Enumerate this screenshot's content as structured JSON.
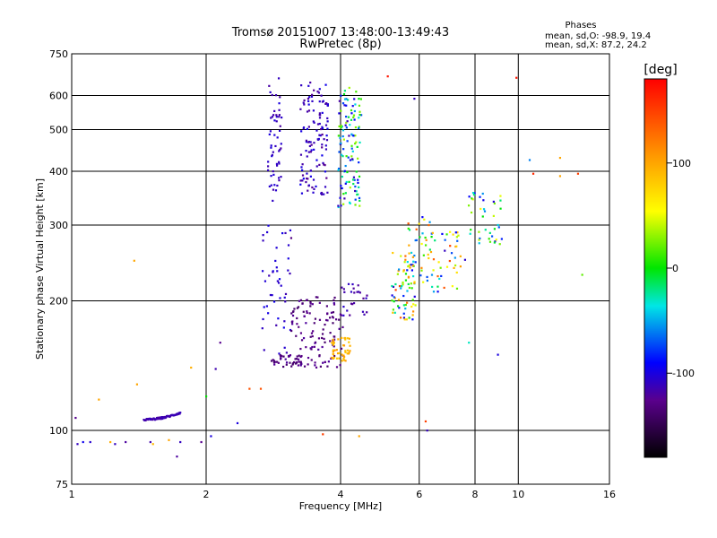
{
  "chart_data": {
    "type": "scatter",
    "title": "Tromsø 20151007 13:48:00-13:49:43",
    "subtitle": "RwPretec (8p)",
    "xlabel": "Frequency [MHz]",
    "ylabel": "Stationary phase Virtual Height [km]",
    "x_scale": "log",
    "y_scale": "log",
    "xlim": [
      1,
      16
    ],
    "ylim": [
      75,
      750
    ],
    "x_ticks": [
      1,
      2,
      4,
      6,
      8,
      10,
      16
    ],
    "y_ticks": [
      75,
      100,
      200,
      300,
      400,
      500,
      600,
      750
    ],
    "grid": true,
    "colorbar": {
      "label": "[deg]",
      "range": [
        -180,
        180
      ],
      "ticks": [
        100,
        0,
        -100
      ]
    },
    "phases_box": {
      "heading": "Phases",
      "line_o": "mean, sd,O: -98.9, 19.4",
      "line_x": "mean, sd,X: 87.2, 24.2"
    },
    "clusters": [
      {
        "x": [
          2.75,
          2.95
        ],
        "y": [
          340,
          660
        ],
        "phase": [
          -120,
          -100
        ],
        "n": 55
      },
      {
        "x": [
          3.25,
          3.75
        ],
        "y": [
          350,
          650
        ],
        "phase": [
          -125,
          -95
        ],
        "n": 120
      },
      {
        "x": [
          3.95,
          4.45
        ],
        "y": [
          330,
          630
        ],
        "phase": [
          -120,
          40
        ],
        "n": 120
      },
      {
        "x": [
          2.65,
          3.1
        ],
        "y": [
          150,
          300
        ],
        "phase": [
          -115,
          -95
        ],
        "n": 45
      },
      {
        "x": [
          2.8,
          3.3
        ],
        "y": [
          140,
          150
        ],
        "phase": [
          -140,
          -120
        ],
        "n": 40
      },
      {
        "x": [
          3.1,
          4.05
        ],
        "y": [
          140,
          205
        ],
        "phase": [
          -140,
          -120
        ],
        "n": 120
      },
      {
        "x": [
          3.8,
          4.2
        ],
        "y": [
          145,
          165
        ],
        "phase": [
          80,
          110
        ],
        "n": 45
      },
      {
        "x": [
          4.0,
          4.6
        ],
        "y": [
          185,
          220
        ],
        "phase": [
          -125,
          -105
        ],
        "n": 25
      },
      {
        "x": [
          5.2,
          5.9
        ],
        "y": [
          180,
          260
        ],
        "phase": [
          -110,
          150
        ],
        "n": 70
      },
      {
        "x": [
          5.6,
          6.5
        ],
        "y": [
          220,
          320
        ],
        "phase": [
          -100,
          140
        ],
        "n": 40
      },
      {
        "x": [
          6.4,
          7.6
        ],
        "y": [
          210,
          290
        ],
        "phase": [
          -110,
          150
        ],
        "n": 40
      },
      {
        "x": [
          7.7,
          9.2
        ],
        "y": [
          270,
          360
        ],
        "phase": [
          -110,
          60
        ],
        "n": 40
      }
    ],
    "trace": {
      "x": [
        1.45,
        1.75
      ],
      "y": [
        106,
        110
      ],
      "phase": [
        -120,
        -110
      ],
      "n": 60
    },
    "scatter_points": [
      {
        "x": 1.02,
        "y": 107,
        "phase": -125
      },
      {
        "x": 1.03,
        "y": 93,
        "phase": -110
      },
      {
        "x": 1.06,
        "y": 94,
        "phase": -95
      },
      {
        "x": 1.1,
        "y": 94,
        "phase": -105
      },
      {
        "x": 1.15,
        "y": 118,
        "phase": 100
      },
      {
        "x": 1.22,
        "y": 94,
        "phase": 95
      },
      {
        "x": 1.25,
        "y": 93,
        "phase": -110
      },
      {
        "x": 1.32,
        "y": 94,
        "phase": -120
      },
      {
        "x": 1.38,
        "y": 248,
        "phase": 100
      },
      {
        "x": 1.4,
        "y": 128,
        "phase": 100
      },
      {
        "x": 1.5,
        "y": 94,
        "phase": -115
      },
      {
        "x": 1.52,
        "y": 93,
        "phase": 90
      },
      {
        "x": 1.65,
        "y": 95,
        "phase": 100
      },
      {
        "x": 1.72,
        "y": 87,
        "phase": -120
      },
      {
        "x": 1.75,
        "y": 94,
        "phase": -110
      },
      {
        "x": 1.85,
        "y": 140,
        "phase": 95
      },
      {
        "x": 1.95,
        "y": 94,
        "phase": -125
      },
      {
        "x": 2.0,
        "y": 120,
        "phase": 0
      },
      {
        "x": 2.05,
        "y": 97,
        "phase": -100
      },
      {
        "x": 2.1,
        "y": 139,
        "phase": -115
      },
      {
        "x": 2.15,
        "y": 160,
        "phase": -125
      },
      {
        "x": 2.35,
        "y": 104,
        "phase": -100
      },
      {
        "x": 2.5,
        "y": 125,
        "phase": 140
      },
      {
        "x": 2.65,
        "y": 125,
        "phase": 140
      },
      {
        "x": 3.1,
        "y": 280,
        "phase": -130
      },
      {
        "x": 3.65,
        "y": 98,
        "phase": 150
      },
      {
        "x": 4.4,
        "y": 97,
        "phase": 100
      },
      {
        "x": 5.1,
        "y": 665,
        "phase": 170
      },
      {
        "x": 5.85,
        "y": 590,
        "phase": -110
      },
      {
        "x": 5.85,
        "y": 220,
        "phase": 100
      },
      {
        "x": 6.2,
        "y": 105,
        "phase": 150
      },
      {
        "x": 6.25,
        "y": 100,
        "phase": -110
      },
      {
        "x": 7.75,
        "y": 160,
        "phase": -30
      },
      {
        "x": 9.0,
        "y": 150,
        "phase": -100
      },
      {
        "x": 9.9,
        "y": 660,
        "phase": 170
      },
      {
        "x": 10.6,
        "y": 425,
        "phase": -60
      },
      {
        "x": 10.8,
        "y": 395,
        "phase": 160
      },
      {
        "x": 12.4,
        "y": 430,
        "phase": 100
      },
      {
        "x": 12.4,
        "y": 390,
        "phase": 100
      },
      {
        "x": 13.6,
        "y": 395,
        "phase": 150
      },
      {
        "x": 13.9,
        "y": 230,
        "phase": 20
      }
    ]
  }
}
